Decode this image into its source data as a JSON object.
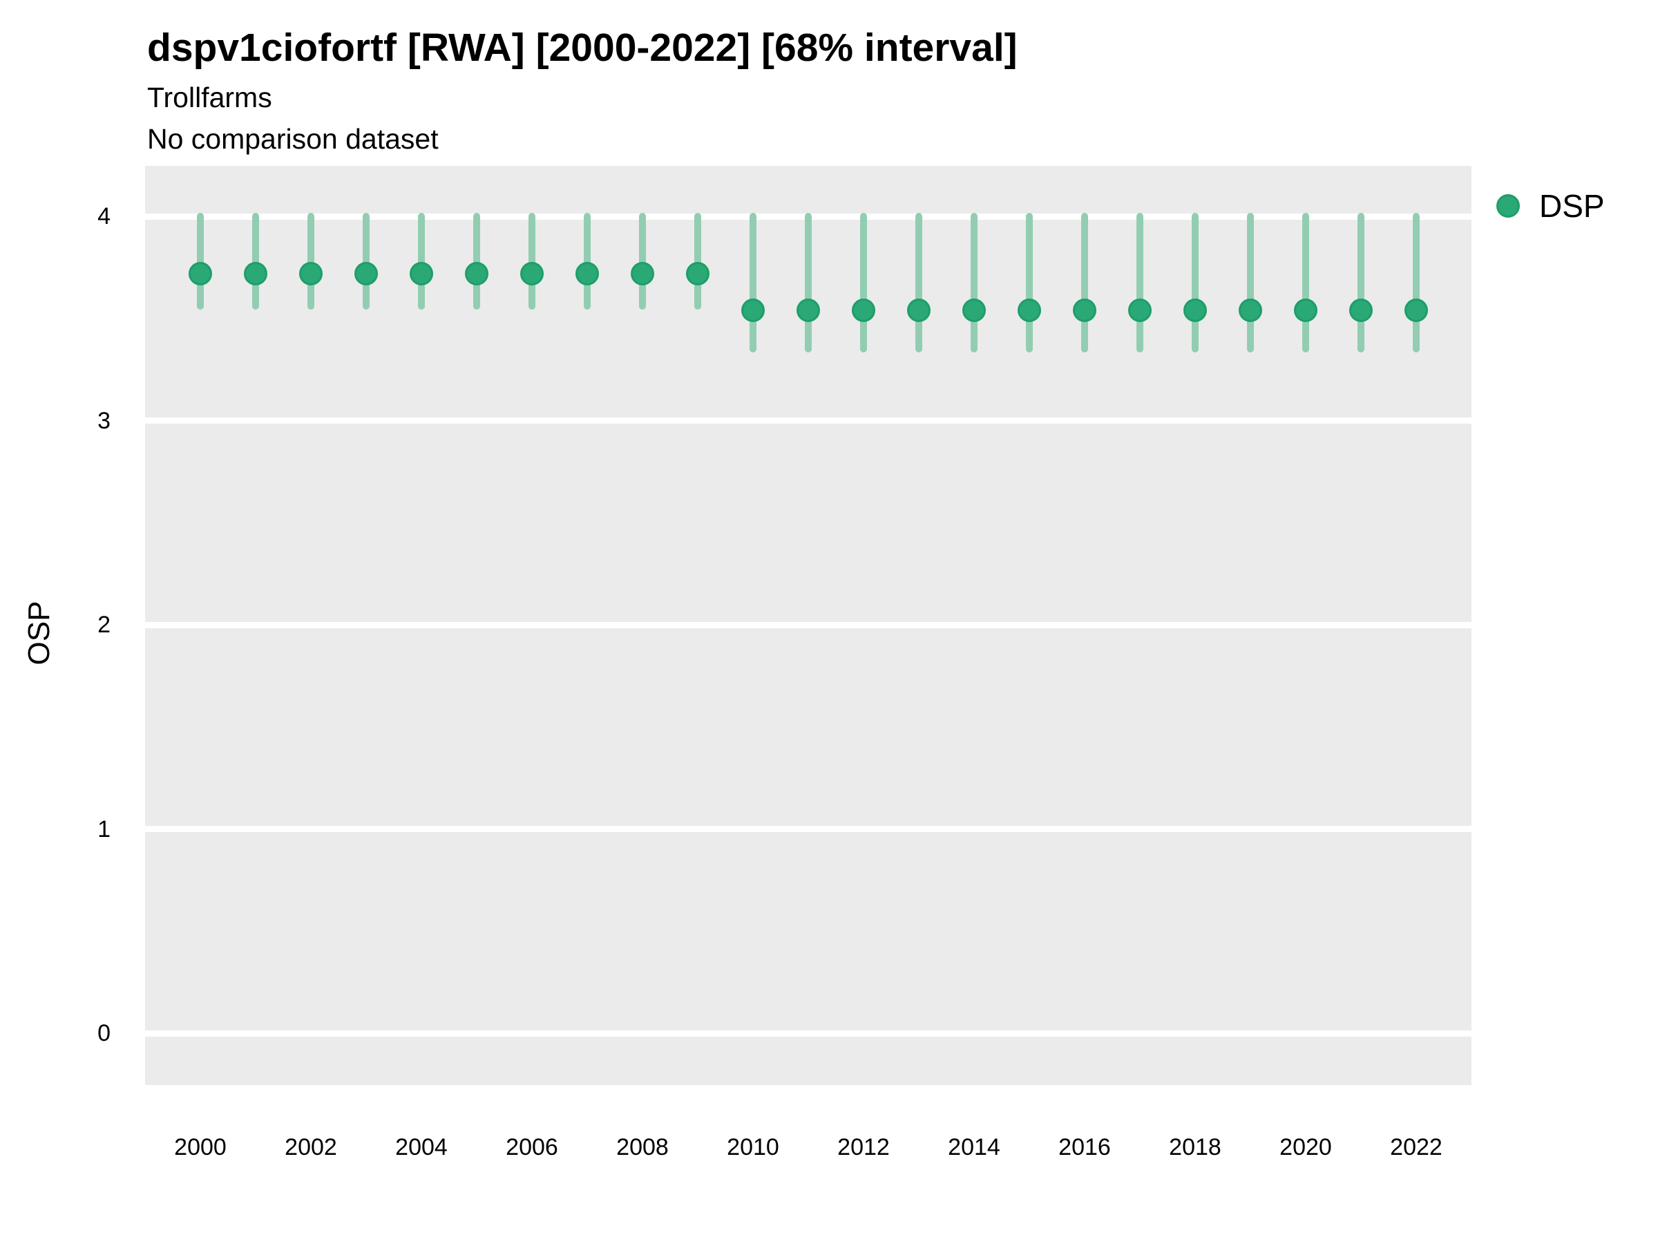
{
  "header": {
    "title": "dspv1ciofortf [RWA] [2000-2022] [68% interval]",
    "subtitle": "Trollfarms",
    "comparison_note": "No comparison dataset"
  },
  "axes": {
    "y_label": "OSP",
    "y_ticks": [
      0,
      1,
      2,
      3,
      4
    ],
    "x_ticks": [
      2000,
      2002,
      2004,
      2006,
      2008,
      2010,
      2012,
      2014,
      2016,
      2018,
      2020,
      2022
    ]
  },
  "legend": {
    "items": [
      {
        "label": "DSP",
        "color": "#2AA876",
        "ring_color": "#1E9E69"
      }
    ]
  },
  "colors": {
    "point": "#2AA876",
    "point_ring": "#1E9E69",
    "interval_bar": "#92CDB2",
    "plot_background": "#EBEBEB",
    "gridline": "#FFFFFF",
    "text": "#000000"
  },
  "chart_data": {
    "type": "scatter",
    "title": "dspv1ciofortf [RWA] [2000-2022] [68% interval]",
    "subtitle": "Trollfarms",
    "note": "No comparison dataset",
    "interval_level": "68%",
    "xlabel": "",
    "ylabel": "OSP",
    "ylim": [
      -0.26,
      4.25
    ],
    "grid": "horizontal-major-only",
    "legend_position": "right",
    "x": [
      2000,
      2001,
      2002,
      2003,
      2004,
      2005,
      2006,
      2007,
      2008,
      2009,
      2010,
      2011,
      2012,
      2013,
      2014,
      2015,
      2016,
      2017,
      2018,
      2019,
      2020,
      2021,
      2022
    ],
    "series": [
      {
        "name": "DSP",
        "values": [
          3.72,
          3.72,
          3.72,
          3.72,
          3.72,
          3.72,
          3.72,
          3.72,
          3.72,
          3.72,
          3.54,
          3.54,
          3.54,
          3.54,
          3.54,
          3.54,
          3.54,
          3.54,
          3.54,
          3.54,
          3.54,
          3.54,
          3.54
        ],
        "lower": [
          3.56,
          3.56,
          3.56,
          3.56,
          3.56,
          3.56,
          3.56,
          3.56,
          3.56,
          3.56,
          3.35,
          3.35,
          3.35,
          3.35,
          3.35,
          3.35,
          3.35,
          3.35,
          3.35,
          3.35,
          3.35,
          3.35,
          3.35
        ],
        "upper": [
          4.0,
          4.0,
          4.0,
          4.0,
          4.0,
          4.0,
          4.0,
          4.0,
          4.0,
          4.0,
          4.0,
          4.0,
          4.0,
          4.0,
          4.0,
          4.0,
          4.0,
          4.0,
          4.0,
          4.0,
          4.0,
          4.0,
          4.0
        ]
      }
    ]
  }
}
